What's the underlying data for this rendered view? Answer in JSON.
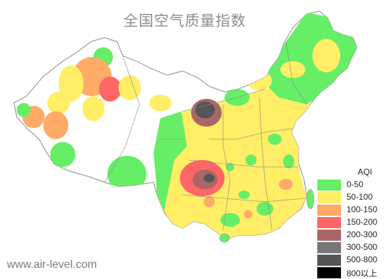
{
  "title": "全国空气质量指数",
  "site": "www.air-level.com",
  "legend": {
    "title": "AQI",
    "items": [
      {
        "label": "0-50",
        "color": "#66ee66"
      },
      {
        "label": "50-100",
        "color": "#ffee66"
      },
      {
        "label": "100-150",
        "color": "#ffaa66"
      },
      {
        "label": "150-200",
        "color": "#ff6666"
      },
      {
        "label": "200-300",
        "color": "#aa6666"
      },
      {
        "label": "300-500",
        "color": "#777777"
      },
      {
        "label": "500-800",
        "color": "#555555"
      },
      {
        "label": "800以上",
        "color": "#000000"
      }
    ]
  }
}
